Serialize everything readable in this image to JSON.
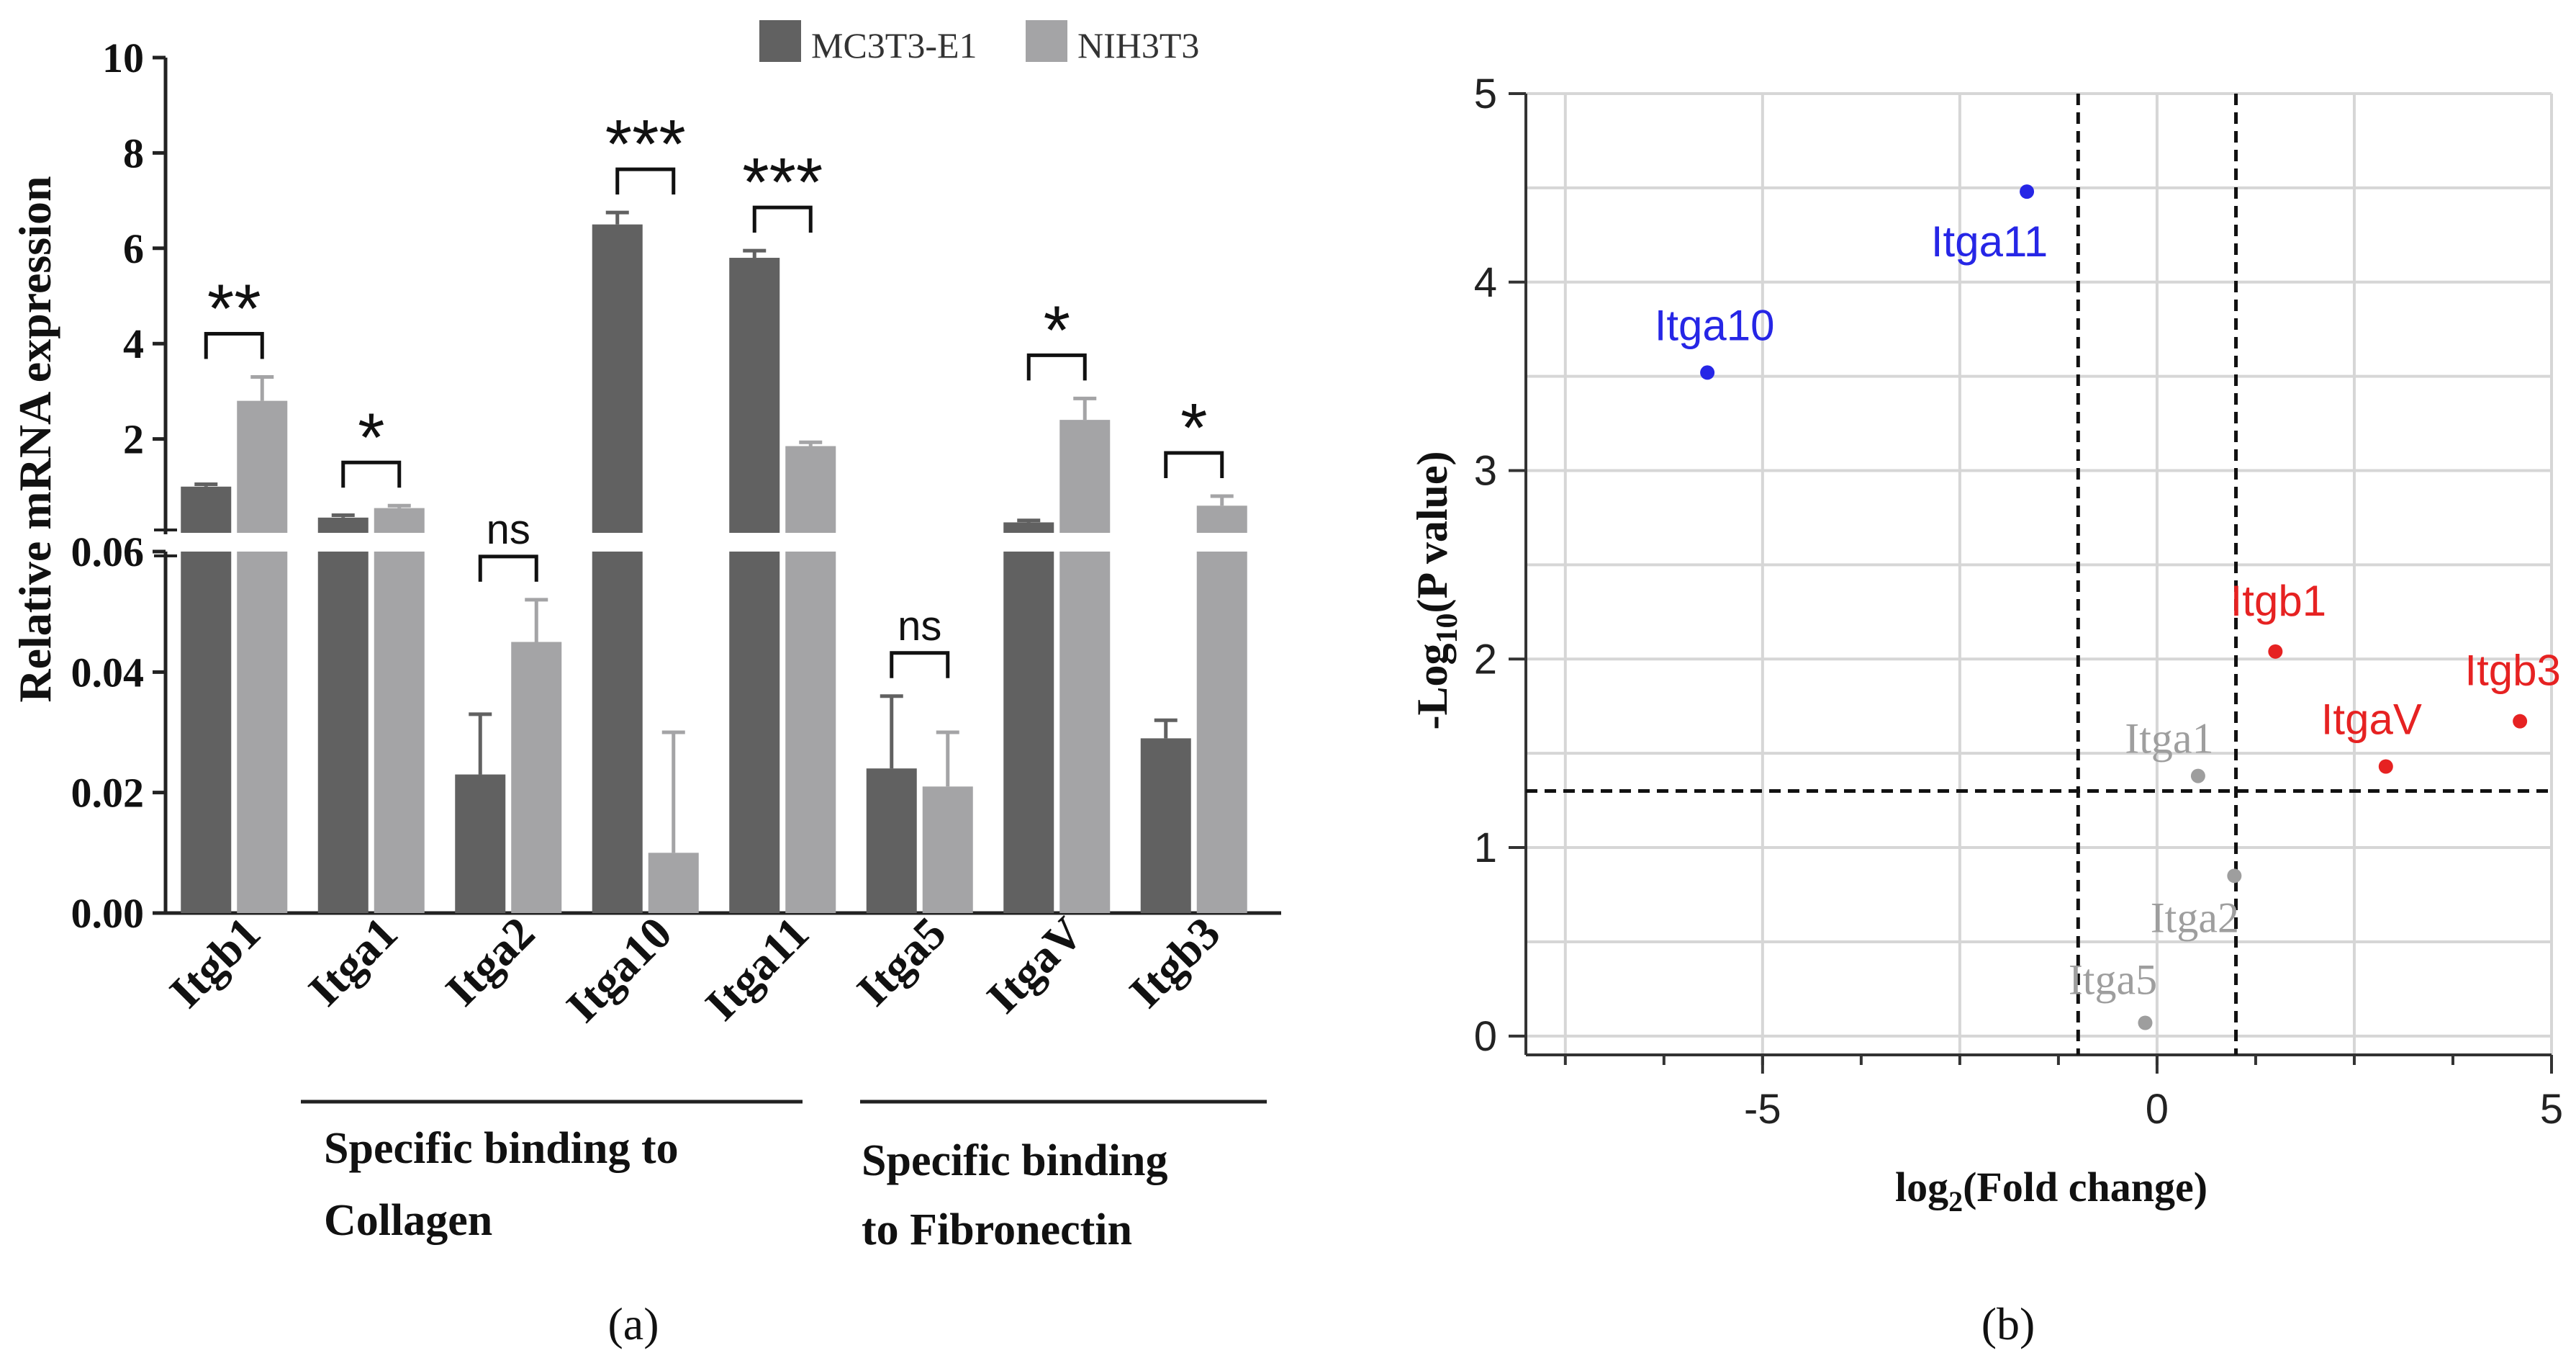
{
  "chart_data": [
    {
      "panel_label": "(a)",
      "type": "bar",
      "ylabel": "Relative mRNA expression",
      "legend": [
        "MC3T3-E1",
        "NIH3T3"
      ],
      "legend_position": "top",
      "categories": [
        "Itgb1",
        "Itga1",
        "Itga2",
        "Itga10",
        "Itga11",
        "Itga5",
        "ItgaV",
        "Itgb3"
      ],
      "series": [
        {
          "name": "MC3T3-E1",
          "color": "#616161",
          "values": [
            1.0,
            0.35,
            0.023,
            6.5,
            5.8,
            0.024,
            0.25,
            0.029
          ],
          "errors": [
            0.05,
            0.05,
            0.01,
            0.25,
            0.15,
            0.012,
            0.04,
            0.003
          ]
        },
        {
          "name": "NIH3T3",
          "color": "#a4a4a6",
          "values": [
            2.8,
            0.55,
            0.045,
            0.01,
            1.85,
            0.021,
            2.4,
            0.6
          ],
          "errors": [
            0.5,
            0.05,
            0.007,
            0.02,
            0.08,
            0.009,
            0.45,
            0.2
          ]
        }
      ],
      "y_axis_lower": {
        "range": [
          0,
          0.06
        ],
        "ticks": [
          "0.00",
          "0.02",
          "0.04",
          "0.06"
        ]
      },
      "y_axis_upper": {
        "range": [
          0,
          10
        ],
        "ticks": [
          "2",
          "4",
          "6",
          "8",
          "10"
        ]
      },
      "significance": [
        "**",
        "*",
        "ns",
        "***",
        "***",
        "ns",
        "*",
        "*"
      ],
      "groups": [
        {
          "label_line1": "Specific binding to",
          "label_line2": "Collagen",
          "span": [
            "Itga1",
            "Itga11"
          ]
        },
        {
          "label_line1": "Specific binding",
          "label_line2": "to Fibronectin",
          "span": [
            "Itga5",
            "Itgb3"
          ]
        }
      ]
    },
    {
      "panel_label": "(b)",
      "type": "scatter",
      "ylabel": "-Log10(P value)",
      "xlabel": "log2(Fold change)",
      "xlim": [
        -8,
        5
      ],
      "ylim": [
        -0.1,
        5
      ],
      "x_ticks": [
        "-5",
        "0",
        "5"
      ],
      "y_ticks": [
        "0",
        "1",
        "2",
        "3",
        "4",
        "5"
      ],
      "grid": true,
      "thresholds": {
        "x": [
          -1,
          1
        ],
        "y": 1.3
      },
      "points": [
        {
          "label": "Itga11",
          "x": -1.65,
          "y": 4.48,
          "color": "#2626e6"
        },
        {
          "label": "Itga10",
          "x": -5.7,
          "y": 3.52,
          "color": "#2626e6"
        },
        {
          "label": "Itgb1",
          "x": 1.5,
          "y": 2.04,
          "color": "#e62222"
        },
        {
          "label": "Itgb3",
          "x": 4.6,
          "y": 1.67,
          "color": "#e62222"
        },
        {
          "label": "ItgaV",
          "x": 2.9,
          "y": 1.43,
          "color": "#e62222"
        },
        {
          "label": "Itga1",
          "x": 0.52,
          "y": 1.38,
          "color": "#9e9e9e"
        },
        {
          "label": "Itga2",
          "x": 0.98,
          "y": 0.85,
          "color": "#9e9e9e"
        },
        {
          "label": "Itga5",
          "x": -0.15,
          "y": 0.07,
          "color": "#9e9e9e"
        }
      ]
    }
  ],
  "labels": {
    "ylabel_b_prefix": "-Log",
    "ylabel_b_sub": "10",
    "ylabel_b_suffix": "(P value)",
    "xlabel_b_prefix": "log",
    "xlabel_b_sub": "2",
    "xlabel_b_suffix": "(Fold change)"
  }
}
